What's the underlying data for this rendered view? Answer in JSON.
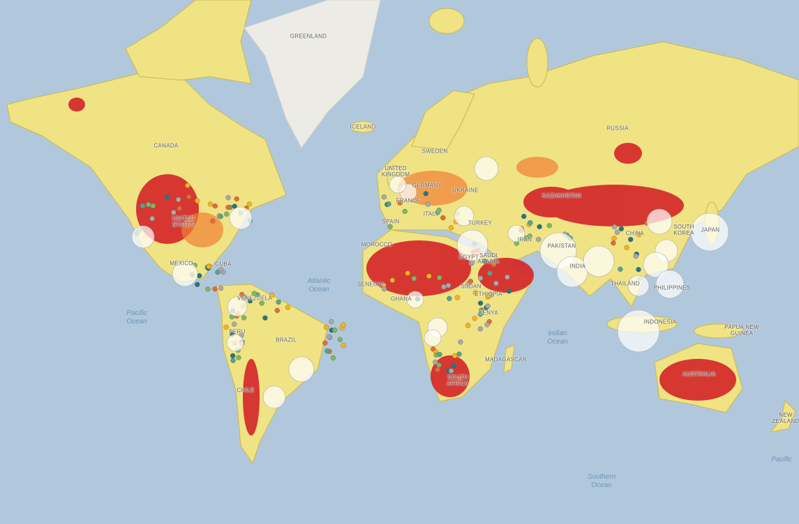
{
  "colors": {
    "ocean": "#b1c8dc",
    "land": "#f0e383",
    "land_border": "#c9b74a",
    "high": "#d4282a",
    "medium_high": "#f07f35",
    "ice": "#ecebe6",
    "bubble": "#ffffff"
  },
  "dot_colors": [
    "#a9a9a9",
    "#e86a2c",
    "#f5b417",
    "#7cb861",
    "#23767f",
    "#55a58a"
  ],
  "ocean_labels": {
    "pacific_west": "Pacific\nOcean",
    "pacific_east": "Pacific",
    "atlantic": "Atlantic\nOcean",
    "indian": "Indian\nOcean",
    "southern": "Southern\nOcean"
  },
  "country_labels": {
    "greenland": "GREENLAND",
    "canada": "CANADA",
    "united_states": "UNITED\nSTATES",
    "mexico": "MEXICO",
    "cuba": "CUBA",
    "venezuela": "VENEZUELA",
    "peru": "PERU",
    "brazil": "BRAZIL",
    "chile": "CHILE",
    "iceland": "ICELAND",
    "sweden": "SWEDEN",
    "united_kingdom": "UNITED\nKINGDOM",
    "germany": "GERMANY",
    "france": "FRANCE",
    "spain": "SPAIN",
    "italy": "ITALY",
    "ukraine": "UKRAINE",
    "kazakhstan": "KAZAKHSTAN",
    "russia": "RUSSIA",
    "turkey": "TURKEY",
    "iran": "IRAN",
    "pakistan": "PAKISTAN",
    "india": "INDIA",
    "china": "CHINA",
    "south_korea": "SOUTH\nKOREA",
    "japan": "JAPAN",
    "thailand": "THAILAND",
    "philippines": "PHILIPPINES",
    "indonesia": "INDONESIA",
    "papua_new_guinea": "PAPUA NEW\nGUINEA",
    "australia": "AUSTRALIA",
    "new_zealand": "NEW\nZEALAND",
    "morocco": "MOROCCO",
    "egypt": "EGYPT",
    "saudi_arabia": "SAUDI\nARABIA",
    "senegal": "SENEGAL",
    "ghana": "GHANA",
    "sudan": "SUDAN",
    "ethiopia": "ETHIOPIA",
    "kenya": "KENYA",
    "madagascar": "MADAGASCAR",
    "south_africa": "SOUTH\nAFRICA"
  }
}
